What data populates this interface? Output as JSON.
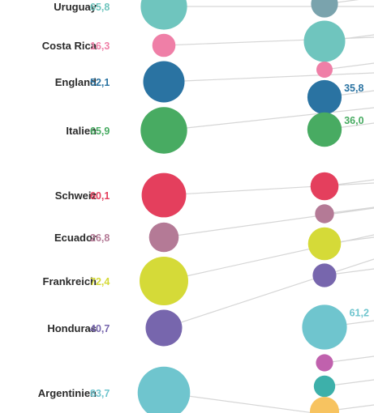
{
  "chart_data": {
    "type": "bubble",
    "grid": false,
    "legend": "none",
    "rows": [
      {
        "country": "Uruguay",
        "left_value": "65,8",
        "left": 65.8,
        "right_label": "",
        "right": 22.0,
        "color": "#6fc5be",
        "right_color": "#7aa3ad"
      },
      {
        "country": "Costa Rica",
        "left_value": "16,3",
        "left": 16.3,
        "right_label": "",
        "right": 52.0,
        "color": "#ef7fa7",
        "right_color": "#6fc5be"
      },
      {
        "country": "England",
        "left_value": "52,1",
        "left": 52.1,
        "right_label": "",
        "right": 8.0,
        "color": "#2a73a2",
        "right_color": "#ef7fa7"
      },
      {
        "country": "Italien",
        "left_value": "65,9",
        "left": 65.9,
        "right_label": "35,8",
        "right": 35.8,
        "color": "#48ab62",
        "right_color": "#2a73a2"
      },
      {
        "country": "",
        "left_value": "",
        "left": null,
        "right_label": "36,0",
        "right": 36.0,
        "color": "",
        "right_color": "#48ab62"
      },
      {
        "country": "Schweiz",
        "left_value": "60,1",
        "left": 60.1,
        "right_label": "",
        "right": 24.0,
        "color": "#e43f5d",
        "right_color": "#e43f5d"
      },
      {
        "country": "Ecuador",
        "left_value": "26,8",
        "left": 26.8,
        "right_label": "",
        "right": 11.0,
        "color": "#b47a96",
        "right_color": "#b47a96"
      },
      {
        "country": "Frankreich",
        "left_value": "72,4",
        "left": 72.4,
        "right_label": "",
        "right": 33.0,
        "color": "#d5da38",
        "right_color": "#d5da38"
      },
      {
        "country": "Honduras",
        "left_value": "40,7",
        "left": 40.7,
        "right_label": "",
        "right": 17.0,
        "color": "#7766ad",
        "right_color": "#7766ad"
      },
      {
        "country": "",
        "left_value": "",
        "left": null,
        "right_label": "61,2",
        "right": 61.2,
        "color": "",
        "right_color": "#6fc5ce"
      },
      {
        "country": "",
        "left_value": "",
        "left": null,
        "right_label": "",
        "right": 9.0,
        "color": "",
        "right_color": "#c061ad"
      },
      {
        "country": "",
        "left_value": "",
        "left": null,
        "right_label": "",
        "right": 14.0,
        "color": "",
        "right_color": "#3db0aa"
      },
      {
        "country": "Argentinien",
        "left_value": "83,7",
        "left": 83.7,
        "right_label": "",
        "right": 26.0,
        "color": "#6fc5ce",
        "right_color": "#f7c360"
      }
    ]
  }
}
